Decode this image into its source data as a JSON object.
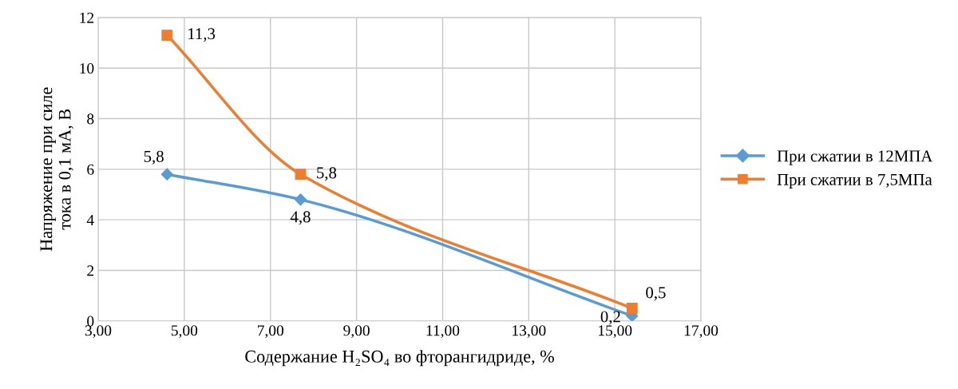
{
  "chart_data": {
    "type": "line",
    "xlabel": "Содержание H₂SO₄ во фторангидриде, %",
    "ylabel": "Напряжение при силе тока в 0,1 мА, В",
    "x": [
      4.6,
      7.7,
      15.4
    ],
    "series": [
      {
        "name": "При сжатии в 12МПА",
        "color": "#5b9bd5",
        "marker": "diamond",
        "values": [
          5.8,
          4.8,
          0.2
        ],
        "value_labels": [
          "5,8",
          "4,8",
          "0,2"
        ]
      },
      {
        "name": "При сжатии в 7,5МПа",
        "color": "#ed7d31",
        "marker": "square",
        "values": [
          11.3,
          5.8,
          0.5
        ],
        "value_labels": [
          "11,3",
          "5,8",
          "0,5"
        ]
      }
    ],
    "xlim": [
      3,
      17
    ],
    "xticks": [
      {
        "value": 3,
        "label": "3,00"
      },
      {
        "value": 5,
        "label": "5,00"
      },
      {
        "value": 7,
        "label": "7,00"
      },
      {
        "value": 9,
        "label": "9,00"
      },
      {
        "value": 11,
        "label": "11,00"
      },
      {
        "value": 13,
        "label": "13,00"
      },
      {
        "value": 15,
        "label": "15,00"
      },
      {
        "value": 17,
        "label": "17,00"
      }
    ],
    "ylim": [
      0,
      12
    ],
    "yticks": [
      0,
      2,
      4,
      6,
      8,
      10,
      12
    ],
    "grid": true,
    "legend": "right",
    "line_style": "solid"
  }
}
